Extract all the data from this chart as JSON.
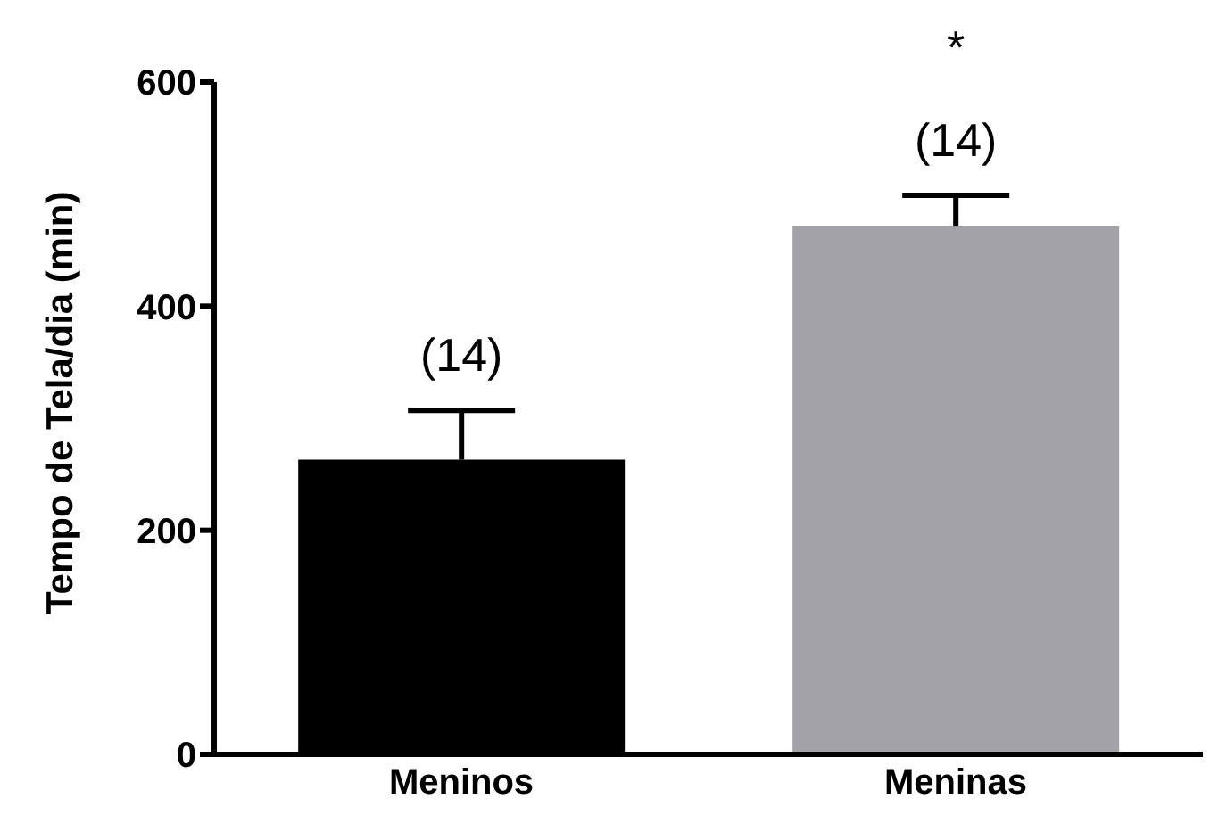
{
  "chart_data": {
    "type": "bar",
    "ylabel": "Tempo de Tela/dia (min)",
    "categories": [
      "Meninos",
      "Meninas"
    ],
    "values": [
      263,
      471
    ],
    "colors": [
      "#000000",
      "#a3a2a8"
    ],
    "errors": [
      [
        263,
        307
      ],
      [
        471,
        499
      ]
    ],
    "ylim": [
      0,
      600
    ],
    "yticks": [
      0,
      200,
      400,
      600
    ],
    "grid": false,
    "legend": false,
    "annotations": [
      "(14)",
      "(14)",
      "*"
    ]
  }
}
